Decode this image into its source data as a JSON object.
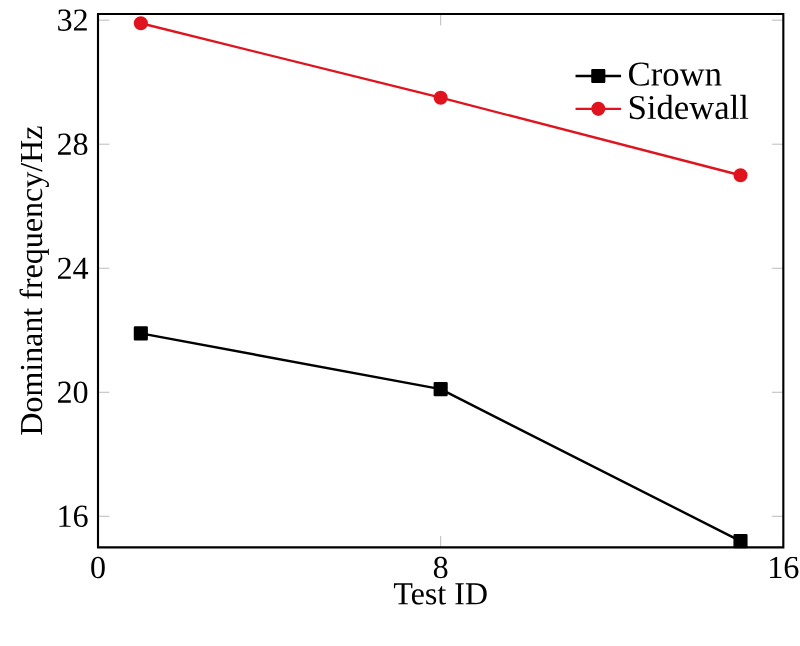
{
  "chart_data": {
    "type": "line",
    "xlabel": "Test ID",
    "ylabel": "Dominant frequency/Hz",
    "x": [
      1,
      8,
      15
    ],
    "series": [
      {
        "name": "Crown",
        "color": "#000000",
        "marker": "square",
        "values": [
          21.9,
          20.1,
          15.2
        ]
      },
      {
        "name": "Sidewall",
        "color": "#e0141e",
        "marker": "circle",
        "values": [
          31.9,
          29.5,
          27.0
        ]
      }
    ],
    "xlim": [
      0,
      16
    ],
    "xticks": [
      0,
      8,
      16
    ],
    "ylim": [
      15,
      32.2
    ],
    "yticks": [
      16,
      20,
      24,
      28,
      32
    ],
    "grid": false,
    "legend": "top right",
    "line_style": "solid"
  }
}
